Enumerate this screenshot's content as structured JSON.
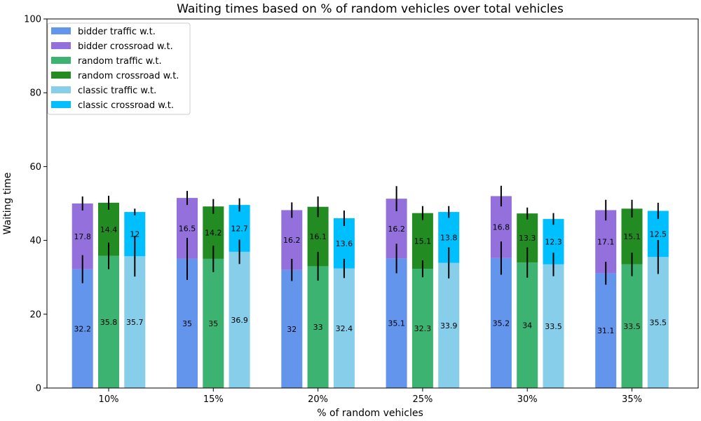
{
  "chart_data": {
    "type": "bar",
    "title": "Waiting times based on % of random vehicles over total vehicles",
    "xlabel": "% of random vehicles",
    "ylabel": "Waiting time",
    "ylim": [
      0,
      100
    ],
    "yticks": [
      0,
      20,
      40,
      60,
      80,
      100
    ],
    "categories": [
      "10%",
      "15%",
      "20%",
      "25%",
      "30%",
      "35%"
    ],
    "legend_position": "top-left",
    "grid": false,
    "groups": [
      {
        "name": "bidder",
        "traffic": {
          "label": "bidder traffic w.t.",
          "color": "#6495ED",
          "values": [
            32.2,
            35,
            32,
            35.1,
            35.2,
            31.1
          ],
          "errors": [
            3.8,
            5.7,
            3.0,
            4.0,
            4.5,
            3.1
          ]
        },
        "crossroad": {
          "label": "bidder crossroad w.t.",
          "color": "#9370DB",
          "values": [
            17.8,
            16.5,
            16.2,
            16.2,
            16.8,
            17.1
          ],
          "errors": [
            1.9,
            1.9,
            2.1,
            3.4,
            2.8,
            2.8
          ]
        }
      },
      {
        "name": "random",
        "traffic": {
          "label": "random traffic w.t.",
          "color": "#3CB371",
          "values": [
            35.8,
            35,
            33,
            32.3,
            34,
            33.5
          ],
          "errors": [
            3.6,
            3.6,
            3.9,
            2.3,
            4.1,
            3.2
          ]
        },
        "crossroad": {
          "label": "random crossroad w.t.",
          "color": "#228B22",
          "values": [
            14.4,
            14.2,
            16.1,
            15.1,
            13.3,
            15.1
          ],
          "errors": [
            1.9,
            2.0,
            2.8,
            1.9,
            1.6,
            2.4
          ]
        }
      },
      {
        "name": "classic",
        "traffic": {
          "label": "classic traffic w.t.",
          "color": "#87CEEB",
          "values": [
            35.7,
            36.9,
            32.4,
            33.9,
            33.5,
            35.5
          ],
          "errors": [
            5.5,
            3.3,
            2.6,
            4.2,
            3.2,
            4.6
          ]
        },
        "crossroad": {
          "label": "classic crossroad w.t.",
          "color": "#00BFFF",
          "values": [
            12,
            12.7,
            13.6,
            13.8,
            12.3,
            12.5
          ],
          "errors": [
            0.9,
            1.8,
            2.1,
            1.6,
            1.6,
            2.2
          ]
        }
      }
    ]
  }
}
